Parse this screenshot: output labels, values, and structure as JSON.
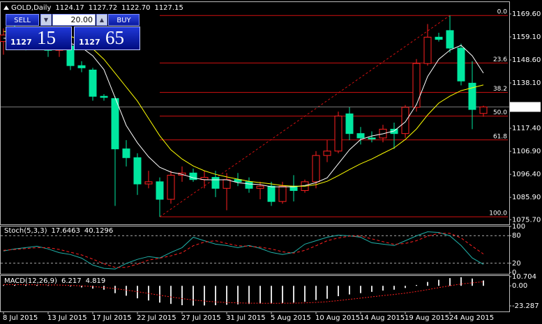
{
  "header": {
    "symbol": "GOLD,Daily",
    "ohlc": [
      "1124.17",
      "1127.72",
      "1122.70",
      "1127.15"
    ]
  },
  "trade_panel": {
    "sell": "SELL",
    "buy": "BUY",
    "lot": "20.00",
    "bid_big": "1127",
    "bid_small": "15",
    "ask_big": "1127",
    "ask_small": "65"
  },
  "chart_data": [
    {
      "type": "candlestick",
      "categories": [
        "8 Jul 2015",
        null,
        null,
        null,
        "13 Jul 2015",
        null,
        null,
        null,
        "17 Jul 2015",
        null,
        null,
        null,
        "22 Jul 2015",
        null,
        null,
        null,
        "27 Jul 2015",
        null,
        null,
        null,
        "31 Jul 2015",
        null,
        null,
        null,
        "5 Aug 2015",
        null,
        null,
        null,
        "10 Aug 2015",
        null,
        null,
        null,
        "14 Aug 2015",
        null,
        null,
        null,
        "19 Aug 2015",
        null,
        null,
        null,
        "24 Aug 2015",
        null,
        null,
        null
      ],
      "open": [
        1157,
        1160,
        1158,
        1157,
        1156,
        1153,
        1155,
        1146,
        1144,
        1132,
        1131,
        1108,
        1104,
        1092,
        1093,
        1085,
        1096,
        1097,
        1094,
        1095,
        1090,
        1094,
        1093,
        1090,
        1091,
        1084,
        1091,
        1089,
        1093,
        1105,
        1107,
        1124,
        1115,
        1113,
        1113,
        1117,
        1115,
        1127,
        1147,
        1159,
        1162,
        1154,
        1138,
        1124.17
      ],
      "high": [
        1163,
        1165,
        1162,
        1159,
        1158,
        1157,
        1158,
        1148,
        1145,
        1133,
        1132,
        1112,
        1106,
        1098,
        1095,
        1098,
        1100,
        1099,
        1098,
        1098,
        1097,
        1097,
        1095,
        1093,
        1093,
        1093,
        1096,
        1094,
        1107,
        1112,
        1125,
        1127,
        1118,
        1116,
        1119,
        1120,
        1128,
        1149,
        1165,
        1161,
        1168.9,
        1156,
        1148,
        1127.72
      ],
      "low": [
        1151,
        1155,
        1153,
        1155,
        1150,
        1150,
        1144,
        1143,
        1130,
        1130,
        1082,
        1100,
        1087,
        1090,
        1077,
        1083,
        1093,
        1093,
        1090,
        1086,
        1080,
        1091,
        1088,
        1085,
        1082,
        1083,
        1084,
        1088,
        1090,
        1102,
        1106,
        1112,
        1110,
        1111,
        1111,
        1108,
        1113,
        1125,
        1146,
        1157,
        1152,
        1137,
        1117,
        1122.7
      ],
      "close": [
        1160,
        1158,
        1157,
        1156,
        1153,
        1155,
        1146,
        1145,
        1132,
        1131.5,
        1108,
        1104,
        1092,
        1093,
        1085,
        1096,
        1097,
        1094,
        1095,
        1090,
        1094,
        1093,
        1090,
        1091,
        1084,
        1091,
        1089,
        1093,
        1105,
        1107,
        1123,
        1115,
        1113,
        1112.5,
        1117,
        1115,
        1127,
        1147,
        1159,
        1158,
        1154,
        1139,
        1126,
        1127.15
      ],
      "up_color": "#ff2020",
      "down_color": "#00e8a0",
      "lines": [
        {
          "color": "#ffffff",
          "values": [
            1158.5,
            1158.5,
            1158.2,
            1157.8,
            1157.5,
            1156.9,
            1156.2,
            1154.3,
            1150.5,
            1144.2,
            1131.4,
            1118.7,
            1110.8,
            1104.4,
            1099.6,
            1097.4,
            1096.4,
            1094.8,
            1093.9,
            1093.9,
            1093.9,
            1092.6,
            1092,
            1091.7,
            1090.7,
            1090.7,
            1090.7,
            1091.3,
            1092.6,
            1094.8,
            1101.2,
            1107.6,
            1112.3,
            1113.9,
            1114.9,
            1116.2,
            1120.3,
            1128.2,
            1141,
            1148.9,
            1153.1,
            1155.3,
            1150.5,
            1142.6
          ]
        },
        {
          "color": "#ffff00",
          "values": [
            1161.6,
            1161.3,
            1161,
            1160.7,
            1160.4,
            1160.1,
            1159.4,
            1157.5,
            1153.7,
            1148.9,
            1142.6,
            1136.2,
            1129.8,
            1121.9,
            1114,
            1107.6,
            1103.4,
            1100.2,
            1098,
            1096.4,
            1095.2,
            1094.2,
            1093.2,
            1092.6,
            1092,
            1091.3,
            1091,
            1091,
            1091.7,
            1093.2,
            1095.8,
            1098.6,
            1101.2,
            1103.4,
            1106,
            1108.5,
            1112.3,
            1117.1,
            1123.5,
            1128.9,
            1132.1,
            1134.6,
            1135.9,
            1137.2
          ]
        }
      ],
      "fibonacci": {
        "color": "#d01010",
        "high": 1168.9,
        "low": 1077,
        "levels": [
          {
            "value": 0,
            "label": "0.0"
          },
          23.6,
          {
            "value": 38.2,
            "label": "38.2"
          },
          {
            "value": 50,
            "label": "50.0"
          },
          61.8,
          {
            "value": 100,
            "label": "100.0"
          }
        ]
      },
      "ylim": [
        1073.56,
        1175.32
      ],
      "yticks": [
        {
          "value": 1169.6,
          "label": "1169.60"
        },
        {
          "value": 1159.1,
          "label": "1159.10"
        },
        {
          "value": 1148.6,
          "label": "1148.60"
        },
        {
          "value": 1138.1,
          "label": "1138.10"
        },
        {
          "value": 1117.4,
          "label": "1117.40"
        },
        {
          "value": 1106.9,
          "label": "1106.90"
        },
        {
          "value": 1096.4,
          "label": "1096.40"
        },
        {
          "value": 1085.9,
          "label": "1085.90"
        },
        {
          "value": 1075.7,
          "label": "1075.70"
        }
      ]
    },
    {
      "type": "stochastic",
      "title": "Stoch(5,3,3)",
      "main": {
        "color": "#20b2aa",
        "values": [
          46.5,
          51,
          54,
          57,
          51,
          43,
          39,
          31,
          16,
          9,
          7.5,
          19.5,
          28.5,
          34.5,
          31.5,
          43.5,
          54,
          76.5,
          69,
          61.5,
          58.5,
          54,
          58.5,
          52.5,
          43.5,
          39,
          43.5,
          61.5,
          69,
          76.5,
          81,
          79.5,
          76.5,
          64.5,
          61.5,
          58.5,
          69,
          79.5,
          88.5,
          87,
          79.5,
          58.5,
          31.5,
          17.6463
        ]
      },
      "signal": {
        "color": "#ff2020",
        "values": [
          48,
          50,
          52,
          54,
          54,
          50,
          44,
          38,
          29,
          19,
          11,
          11,
          18,
          27,
          31,
          36,
          43,
          58,
          66,
          69,
          63,
          58,
          57,
          55,
          51,
          45,
          42,
          48,
          58,
          69,
          75,
          79,
          79,
          73,
          67,
          61,
          63,
          69,
          79,
          85,
          85,
          75,
          57,
          40.1296
        ]
      },
      "level_lines": [
        20,
        80
      ],
      "ylim": [
        0,
        100
      ],
      "yticks": [
        0,
        20,
        80,
        100
      ]
    },
    {
      "type": "macd",
      "title": "MACD(12,26,9)",
      "main": {
        "color": "#e0e0e0",
        "values": [
          0.8,
          1,
          1.2,
          1,
          0.6,
          0,
          -0.8,
          -1.8,
          -3.2,
          -4.5,
          -8.5,
          -11.5,
          -14.5,
          -17,
          -19.5,
          -21,
          -22.5,
          -23,
          -22.8,
          -22.5,
          -22,
          -21.5,
          -21,
          -20.5,
          -20.5,
          -20,
          -19.5,
          -18.5,
          -16.5,
          -15,
          -12,
          -10,
          -8.5,
          -7,
          -5.5,
          -4.5,
          -2.5,
          1,
          4.5,
          7,
          9,
          10,
          8.5,
          6.217
        ]
      },
      "signal": {
        "color": "#ff2020",
        "values": [
          1.5,
          1.4,
          1.3,
          1.2,
          1.1,
          0.9,
          0.5,
          -0.1,
          -0.9,
          -1.8,
          -3.2,
          -4.9,
          -6.8,
          -8.8,
          -10.9,
          -12.9,
          -14.8,
          -16.4,
          -17.7,
          -18.7,
          -19.4,
          -19.8,
          -20.1,
          -20.2,
          -20.3,
          -20.2,
          -20.1,
          -19.8,
          -19.2,
          -18.4,
          -17.1,
          -15.7,
          -14.3,
          -12.8,
          -11.3,
          -10,
          -8.5,
          -6.6,
          -4.4,
          -2.1,
          0.1,
          2.1,
          3.5,
          4.819
        ]
      },
      "ylim": [
        -23.287,
        10.704
      ],
      "yticks": [
        10.704,
        {
          "value": 0,
          "label": "0.00"
        },
        -23.287
      ]
    }
  ]
}
